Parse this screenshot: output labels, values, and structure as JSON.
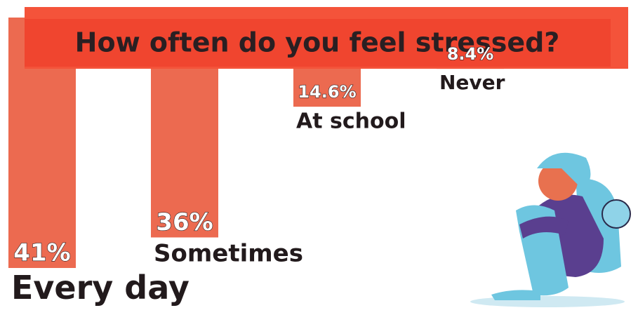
{
  "chart_data": {
    "type": "bar",
    "title": "How often do you feel stressed?",
    "categories": [
      "Every day",
      "Sometimes",
      "At school",
      "Never"
    ],
    "values": [
      41,
      36,
      14.6,
      8.4
    ],
    "value_labels": [
      "41%",
      "36%",
      "14.6%",
      "8.4%"
    ],
    "color": "#ec6a50",
    "ylim": [
      0,
      41
    ]
  }
}
